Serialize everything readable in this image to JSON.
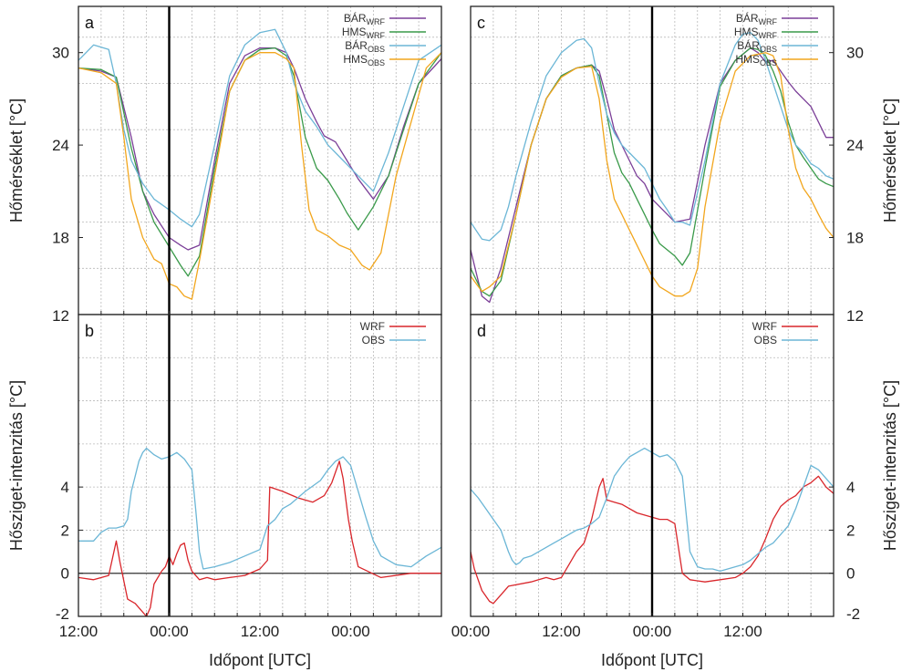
{
  "chart_data": [
    {
      "panel": "a",
      "type": "line",
      "ylabel": "Hőmérséklet [°C]",
      "xlim": [
        0,
        48
      ],
      "ylim": [
        13,
        33
      ],
      "yticks": [
        18,
        24,
        30
      ],
      "xticks": [
        0,
        12,
        24,
        36
      ],
      "xticklabels": [
        "12:00",
        "00:00",
        "12:00",
        "00:00"
      ],
      "grid": true,
      "legend": "top-right",
      "vline": 12,
      "series": [
        {
          "name": "BÁR",
          "sub": "WRF",
          "color": "#7b3f98",
          "x": [
            0,
            3,
            5,
            7,
            8.5,
            10,
            12,
            13.5,
            14.5,
            16,
            18,
            20,
            22,
            24,
            26,
            27.5,
            28.5,
            30,
            31.5,
            32.5,
            34,
            35.5,
            37,
            39,
            41,
            43,
            45,
            48
          ],
          "y": [
            29,
            28.8,
            28.4,
            24.5,
            21,
            19.5,
            18,
            17.5,
            17.2,
            17.5,
            23,
            28,
            29.8,
            30.3,
            30.3,
            30,
            29,
            27,
            25.5,
            24.6,
            24.2,
            23,
            21.8,
            20.5,
            22,
            25.2,
            28,
            29.6
          ]
        },
        {
          "name": "HMS",
          "sub": "WRF",
          "color": "#3a9a4a",
          "x": [
            0,
            3,
            5,
            7,
            8.5,
            10,
            12,
            13.5,
            14.5,
            16,
            18,
            20,
            22,
            24,
            26,
            27.5,
            28.5,
            30,
            31.5,
            33,
            34.5,
            35.5,
            37,
            39,
            41,
            43,
            45,
            48
          ],
          "y": [
            29,
            28.9,
            28.4,
            23.8,
            21,
            19,
            17.4,
            16.2,
            15.5,
            16.8,
            22.5,
            27.5,
            29.5,
            30.2,
            30.3,
            29.8,
            28.5,
            24.5,
            22.5,
            21.7,
            20.5,
            19.6,
            18.5,
            20,
            22,
            25,
            28,
            30
          ]
        },
        {
          "name": "BÁR",
          "sub": "OBS",
          "color": "#6bb6d6",
          "x": [
            0,
            2,
            4,
            5,
            6,
            7,
            8.5,
            10,
            12,
            13.5,
            15,
            16,
            18,
            20,
            22,
            24,
            26,
            27.5,
            28.5,
            30,
            31.5,
            33,
            35,
            37,
            39,
            41,
            43,
            45,
            48
          ],
          "y": [
            29.5,
            30.5,
            30.2,
            28,
            25,
            23,
            21.5,
            20.5,
            19.8,
            19.2,
            18.7,
            19.5,
            24,
            28.5,
            30.5,
            31.3,
            31.5,
            30,
            28,
            26.2,
            25.2,
            24,
            23,
            22,
            21,
            23.5,
            26.5,
            29.5,
            30.5
          ]
        },
        {
          "name": "HMS",
          "sub": "OBS",
          "color": "#f2a61d",
          "x": [
            0,
            3,
            5,
            6,
            7,
            8.5,
            10,
            11,
            12,
            13,
            14,
            15,
            16,
            18,
            20,
            22,
            24,
            26,
            27.5,
            28.5,
            29.5,
            30.5,
            31.5,
            33,
            34.5,
            36,
            37.5,
            38.5,
            40,
            42,
            44,
            46,
            48
          ],
          "y": [
            29,
            28.7,
            28,
            24.5,
            20.5,
            18,
            16.6,
            16.3,
            15,
            14.8,
            14.2,
            14,
            16.5,
            22,
            27.5,
            29.5,
            30,
            30,
            29.6,
            29,
            24,
            19.8,
            18.5,
            18.1,
            17.5,
            17.2,
            16.2,
            15.9,
            17,
            22,
            25.5,
            29,
            30
          ]
        }
      ]
    },
    {
      "panel": "b",
      "type": "line",
      "ylabel": "Hősziget-intenzitás [°C]",
      "xlim": [
        0,
        48
      ],
      "ylim": [
        -2,
        12
      ],
      "yticks": [
        -2,
        0,
        2,
        4,
        12
      ],
      "xticks": [
        0,
        12,
        24,
        36
      ],
      "xticklabels": [
        "12:00",
        "00:00",
        "12:00",
        "00:00"
      ],
      "xlabel": "Időpont [UTC]",
      "grid": true,
      "legend": "top-right",
      "vline": 12,
      "hline": 0,
      "series": [
        {
          "name": "WRF",
          "color": "#d9262b",
          "x": [
            0,
            2,
            4,
            5,
            5.5,
            6.5,
            7.5,
            8.5,
            9,
            9.5,
            10,
            11,
            11.5,
            12,
            12.5,
            13,
            13.5,
            14,
            14.5,
            15,
            16,
            17,
            18,
            20,
            22,
            24,
            25,
            25.3,
            27,
            29,
            31,
            32.5,
            33.5,
            34.5,
            35,
            35.7,
            36.2,
            37,
            40,
            44,
            48
          ],
          "y": [
            -0.2,
            -0.3,
            -0.1,
            1.5,
            0.5,
            -1.2,
            -1.4,
            -1.8,
            -2,
            -1.6,
            -0.5,
            0.1,
            0.3,
            0.8,
            0.4,
            0.9,
            1.3,
            1.4,
            0.6,
            0.1,
            -0.3,
            -0.2,
            -0.3,
            -0.2,
            -0.1,
            0.2,
            0.6,
            4,
            3.8,
            3.5,
            3.3,
            3.6,
            4.2,
            5.2,
            4.4,
            2.5,
            1.5,
            0.3,
            -0.2,
            0,
            0
          ]
        },
        {
          "name": "OBS",
          "color": "#6bb6d6",
          "x": [
            0,
            2,
            3,
            4,
            5,
            6,
            6.5,
            7,
            7.5,
            8,
            8.5,
            9,
            10,
            11,
            12,
            13,
            14,
            15,
            15.5,
            16,
            16.5,
            18,
            20,
            22,
            24,
            25,
            26,
            27,
            28,
            29,
            30,
            32,
            33,
            34,
            35,
            36,
            37,
            38,
            39,
            40,
            42,
            44,
            46,
            48
          ],
          "y": [
            1.5,
            1.5,
            1.9,
            2.1,
            2.1,
            2.2,
            2.5,
            3.8,
            4.5,
            5.2,
            5.6,
            5.8,
            5.5,
            5.3,
            5.4,
            5.6,
            5.3,
            4.8,
            3,
            1,
            0.2,
            0.3,
            0.5,
            0.8,
            1.1,
            2.2,
            2.5,
            3,
            3.2,
            3.5,
            3.8,
            4.3,
            4.8,
            5.2,
            5.4,
            5,
            3.8,
            2.6,
            1.5,
            0.8,
            0.4,
            0.3,
            0.8,
            1.2
          ]
        }
      ]
    },
    {
      "panel": "c",
      "type": "line",
      "ylabel": "Hőmérséklet [°C]",
      "xlim": [
        0,
        48
      ],
      "ylim": [
        13,
        33
      ],
      "yticks": [
        18,
        24,
        30
      ],
      "xticks": [
        0,
        12,
        24,
        36
      ],
      "xticklabels": [
        "00:00",
        "12:00",
        "00:00",
        "12:00"
      ],
      "grid": true,
      "legend": "top-right",
      "vline": 24,
      "series": [
        {
          "name": "BÁR",
          "sub": "WRF",
          "color": "#7b3f98",
          "x": [
            0,
            1.5,
            2.5,
            4,
            6,
            8,
            10,
            12,
            14,
            16,
            17,
            18,
            19,
            20,
            21,
            22,
            23,
            24,
            25,
            26,
            27,
            29,
            31,
            33,
            35,
            37,
            38,
            39,
            40,
            41,
            42,
            43,
            44,
            45,
            46,
            47,
            48
          ],
          "y": [
            17.2,
            14.2,
            13.8,
            16,
            20,
            24,
            27,
            28.5,
            29,
            29.2,
            28.8,
            27,
            25,
            24,
            23,
            22,
            21.5,
            20.5,
            20,
            19.5,
            19,
            19.2,
            24,
            28,
            29.5,
            30.3,
            30,
            29.4,
            29.5,
            28.8,
            28.1,
            27.5,
            27,
            26.5,
            25.5,
            24.5,
            24.5
          ]
        },
        {
          "name": "HMS",
          "sub": "WRF",
          "color": "#3a9a4a",
          "x": [
            0,
            1.5,
            2.5,
            4,
            6,
            8,
            10,
            12,
            14,
            16,
            17,
            18,
            19,
            20,
            21,
            22,
            23,
            24,
            25,
            26,
            27,
            28,
            29,
            31,
            33,
            35,
            37,
            38,
            39,
            40,
            41,
            42,
            43,
            44,
            45,
            46,
            47,
            48
          ],
          "y": [
            16,
            14.5,
            14.2,
            15.2,
            19.5,
            24,
            27,
            28.5,
            29,
            29.2,
            28.5,
            26,
            23.5,
            22.2,
            21.5,
            20.5,
            19.5,
            18.5,
            17.6,
            17.2,
            16.8,
            16.2,
            17,
            22.5,
            27.8,
            29.5,
            30.3,
            30.2,
            29.8,
            28.8,
            27.5,
            25.5,
            24,
            23.2,
            22.5,
            21.8,
            21.5,
            21.3
          ]
        },
        {
          "name": "BÁR",
          "sub": "OBS",
          "color": "#6bb6d6",
          "x": [
            0,
            1.5,
            2.5,
            4,
            5,
            6,
            8,
            10,
            12,
            14,
            15,
            16,
            17,
            18,
            19,
            20,
            21,
            22,
            23,
            24,
            25,
            26,
            27,
            28,
            29,
            31,
            33,
            35,
            36,
            37,
            38,
            39,
            40,
            41,
            42,
            43,
            44,
            45,
            46,
            47,
            48
          ],
          "y": [
            19,
            17.9,
            17.8,
            18.5,
            20,
            22,
            25.5,
            28.5,
            30,
            30.8,
            30.9,
            30.3,
            28,
            26,
            24.8,
            24,
            23.5,
            23,
            22.5,
            21.5,
            20.5,
            19.8,
            19,
            19,
            18.8,
            23,
            28,
            30.5,
            31.2,
            31.3,
            30.8,
            29.5,
            28,
            26.5,
            25,
            24,
            23.5,
            22.8,
            22.5,
            22,
            21.8
          ]
        },
        {
          "name": "HMS",
          "sub": "OBS",
          "color": "#f2a61d",
          "x": [
            0,
            1.5,
            2.5,
            4,
            6,
            8,
            10,
            12,
            14,
            16,
            17,
            18,
            19,
            20,
            21,
            22,
            23,
            24,
            25,
            26,
            27,
            28,
            29,
            30,
            31,
            33,
            35,
            37,
            39,
            40,
            41,
            42,
            43,
            44,
            45,
            46,
            47,
            48
          ],
          "y": [
            15.5,
            14.5,
            14.8,
            15.5,
            19.5,
            24,
            27,
            28.4,
            29,
            29.1,
            27,
            23,
            20.5,
            19.5,
            18.5,
            17.5,
            16.5,
            15.5,
            14.8,
            14.5,
            14.2,
            14.2,
            14.5,
            16,
            20,
            25.5,
            28.8,
            29.8,
            30,
            29.8,
            28.5,
            25,
            22.5,
            21.2,
            20.5,
            19.5,
            18.6,
            18
          ]
        }
      ]
    },
    {
      "panel": "d",
      "type": "line",
      "ylabel": "Hősziget-intenzitás [°C]",
      "xlim": [
        0,
        48
      ],
      "ylim": [
        -2,
        12
      ],
      "yticks": [
        -2,
        0,
        2,
        4,
        12
      ],
      "xticks": [
        0,
        12,
        24,
        36
      ],
      "xticklabels": [
        "00:00",
        "12:00",
        "00:00",
        "12:00"
      ],
      "xlabel": "Időpont [UTC]",
      "grid": true,
      "legend": "top-right",
      "vline": 24,
      "hline": 0,
      "series": [
        {
          "name": "WRF",
          "color": "#d9262b",
          "x": [
            0,
            0.5,
            1.5,
            2.5,
            3,
            4,
            5,
            8,
            9,
            10,
            11,
            12,
            13,
            14,
            15,
            16,
            17,
            17.5,
            18,
            19,
            20,
            21,
            22,
            23,
            24,
            25,
            26,
            27,
            28,
            29,
            31,
            33,
            35,
            36,
            37,
            38,
            39,
            40,
            41,
            42,
            43,
            44,
            45,
            46,
            47,
            48
          ],
          "y": [
            1,
            0.2,
            -0.8,
            -1.3,
            -1.4,
            -1,
            -0.6,
            -0.4,
            -0.3,
            -0.2,
            -0.3,
            -0.2,
            0.4,
            1,
            1.4,
            2.5,
            4,
            4.4,
            3.4,
            3.3,
            3.2,
            3,
            2.8,
            2.7,
            2.6,
            2.5,
            2.5,
            2.3,
            0,
            -0.3,
            -0.4,
            -0.3,
            -0.2,
            0,
            0.3,
            0.8,
            1.6,
            2.5,
            3.1,
            3.4,
            3.6,
            4,
            4.2,
            4.5,
            4,
            3.7
          ]
        },
        {
          "name": "OBS",
          "color": "#6bb6d6",
          "x": [
            0,
            1,
            2,
            3,
            4,
            5,
            5.5,
            6,
            6.5,
            7,
            8,
            9,
            10,
            11,
            12,
            13,
            14,
            15,
            16,
            17,
            18,
            19,
            20,
            21,
            22,
            23,
            24,
            25,
            26,
            27,
            28,
            29,
            30,
            31,
            32,
            33,
            34,
            35,
            36,
            37,
            38,
            39,
            40,
            41,
            42,
            43,
            44,
            45,
            46,
            47,
            48
          ],
          "y": [
            3.9,
            3.5,
            3,
            2.5,
            2,
            1,
            0.6,
            0.4,
            0.5,
            0.7,
            0.8,
            1,
            1.2,
            1.4,
            1.6,
            1.8,
            2,
            2.1,
            2.3,
            2.6,
            3.5,
            4.5,
            5,
            5.4,
            5.6,
            5.8,
            5.6,
            5.4,
            5.5,
            5.2,
            4.5,
            1,
            0.3,
            0.2,
            0.2,
            0.1,
            0.2,
            0.3,
            0.4,
            0.6,
            0.9,
            1.2,
            1.4,
            1.8,
            2.2,
            3,
            4,
            5,
            4.8,
            4.4,
            4
          ]
        }
      ]
    }
  ]
}
